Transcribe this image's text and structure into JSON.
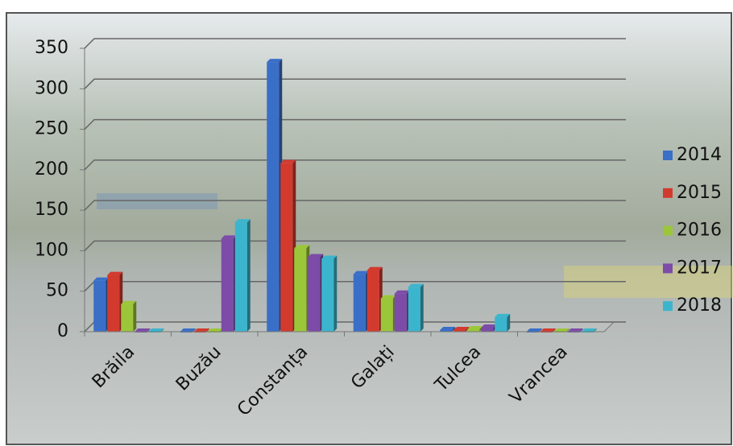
{
  "chart_data": {
    "type": "bar",
    "categories": [
      "Brăila",
      "Buzău",
      "Constanța",
      "Galați",
      "Tulcea",
      "Vrancea"
    ],
    "series": [
      {
        "name": "2014",
        "color": "#3a6fc8",
        "values": [
          63,
          0,
          333,
          71,
          2,
          0
        ]
      },
      {
        "name": "2015",
        "color": "#d33a2e",
        "values": [
          70,
          0,
          208,
          76,
          2,
          0
        ]
      },
      {
        "name": "2016",
        "color": "#9cc63a",
        "values": [
          34,
          0,
          103,
          41,
          3,
          0
        ]
      },
      {
        "name": "2017",
        "color": "#7c4ca8",
        "values": [
          0,
          115,
          92,
          47,
          5,
          0
        ]
      },
      {
        "name": "2018",
        "color": "#3bb5cd",
        "values": [
          0,
          135,
          90,
          55,
          18,
          0
        ]
      }
    ],
    "ylim": [
      0,
      350
    ],
    "yticks": [
      0,
      50,
      100,
      150,
      200,
      250,
      300,
      350
    ],
    "grid": true,
    "legend": "right"
  }
}
